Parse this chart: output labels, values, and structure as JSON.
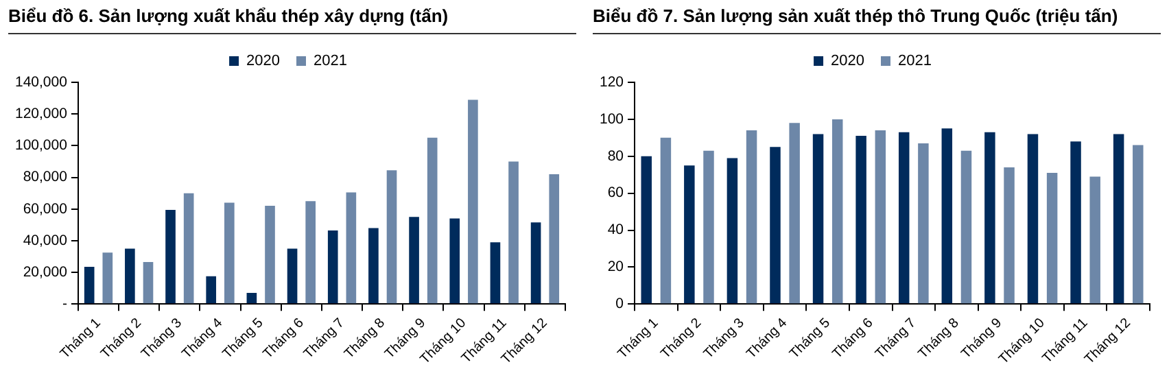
{
  "chart_data": [
    {
      "type": "bar",
      "title": "Biểu đồ 6. Sản lượng xuất khẩu thép xây dựng (tấn)",
      "categories": [
        "Tháng 1",
        "Tháng 2",
        "Tháng 3",
        "Tháng 4",
        "Tháng 5",
        "Tháng 6",
        "Tháng 7",
        "Tháng 8",
        "Tháng 9",
        "Tháng 10",
        "Tháng 11",
        "Tháng 12"
      ],
      "series": [
        {
          "name": "2020",
          "color": "#002b5c",
          "values": [
            23500,
            35000,
            59500,
            17500,
            7000,
            35000,
            46500,
            48000,
            55000,
            54000,
            39000,
            51500
          ]
        },
        {
          "name": "2021",
          "color": "#6d87a8",
          "values": [
            32500,
            26500,
            70000,
            64000,
            62000,
            65000,
            70500,
            84500,
            105000,
            129000,
            90000,
            82000
          ]
        }
      ],
      "ylim": [
        0,
        140000
      ],
      "yticks": [
        {
          "value": 0,
          "label": "-"
        },
        {
          "value": 20000,
          "label": "20,000"
        },
        {
          "value": 40000,
          "label": "40,000"
        },
        {
          "value": 60000,
          "label": "60,000"
        },
        {
          "value": 80000,
          "label": "80,000"
        },
        {
          "value": 100000,
          "label": "100,000"
        },
        {
          "value": 120000,
          "label": "120,000"
        },
        {
          "value": 140000,
          "label": "140,000"
        }
      ],
      "grid": false,
      "legend": "top"
    },
    {
      "type": "bar",
      "title": "Biểu đồ 7. Sản lượng sản xuất thép thô Trung Quốc (triệu tấn)",
      "categories": [
        "Tháng 1",
        "Tháng 2",
        "Tháng 3",
        "Tháng 4",
        "Tháng 5",
        "Tháng 6",
        "Tháng 7",
        "Tháng 8",
        "Tháng 9",
        "Tháng 10",
        "Tháng 11",
        "Tháng 12"
      ],
      "series": [
        {
          "name": "2020",
          "color": "#002b5c",
          "values": [
            80,
            75,
            79,
            85,
            92,
            91,
            93,
            95,
            93,
            92,
            88,
            92
          ]
        },
        {
          "name": "2021",
          "color": "#6d87a8",
          "values": [
            90,
            83,
            94,
            98,
            100,
            94,
            87,
            83,
            74,
            71,
            69,
            86
          ]
        }
      ],
      "ylim": [
        0,
        120
      ],
      "yticks": [
        0,
        20,
        40,
        60,
        80,
        100,
        120
      ],
      "grid": false,
      "legend": "top"
    }
  ]
}
